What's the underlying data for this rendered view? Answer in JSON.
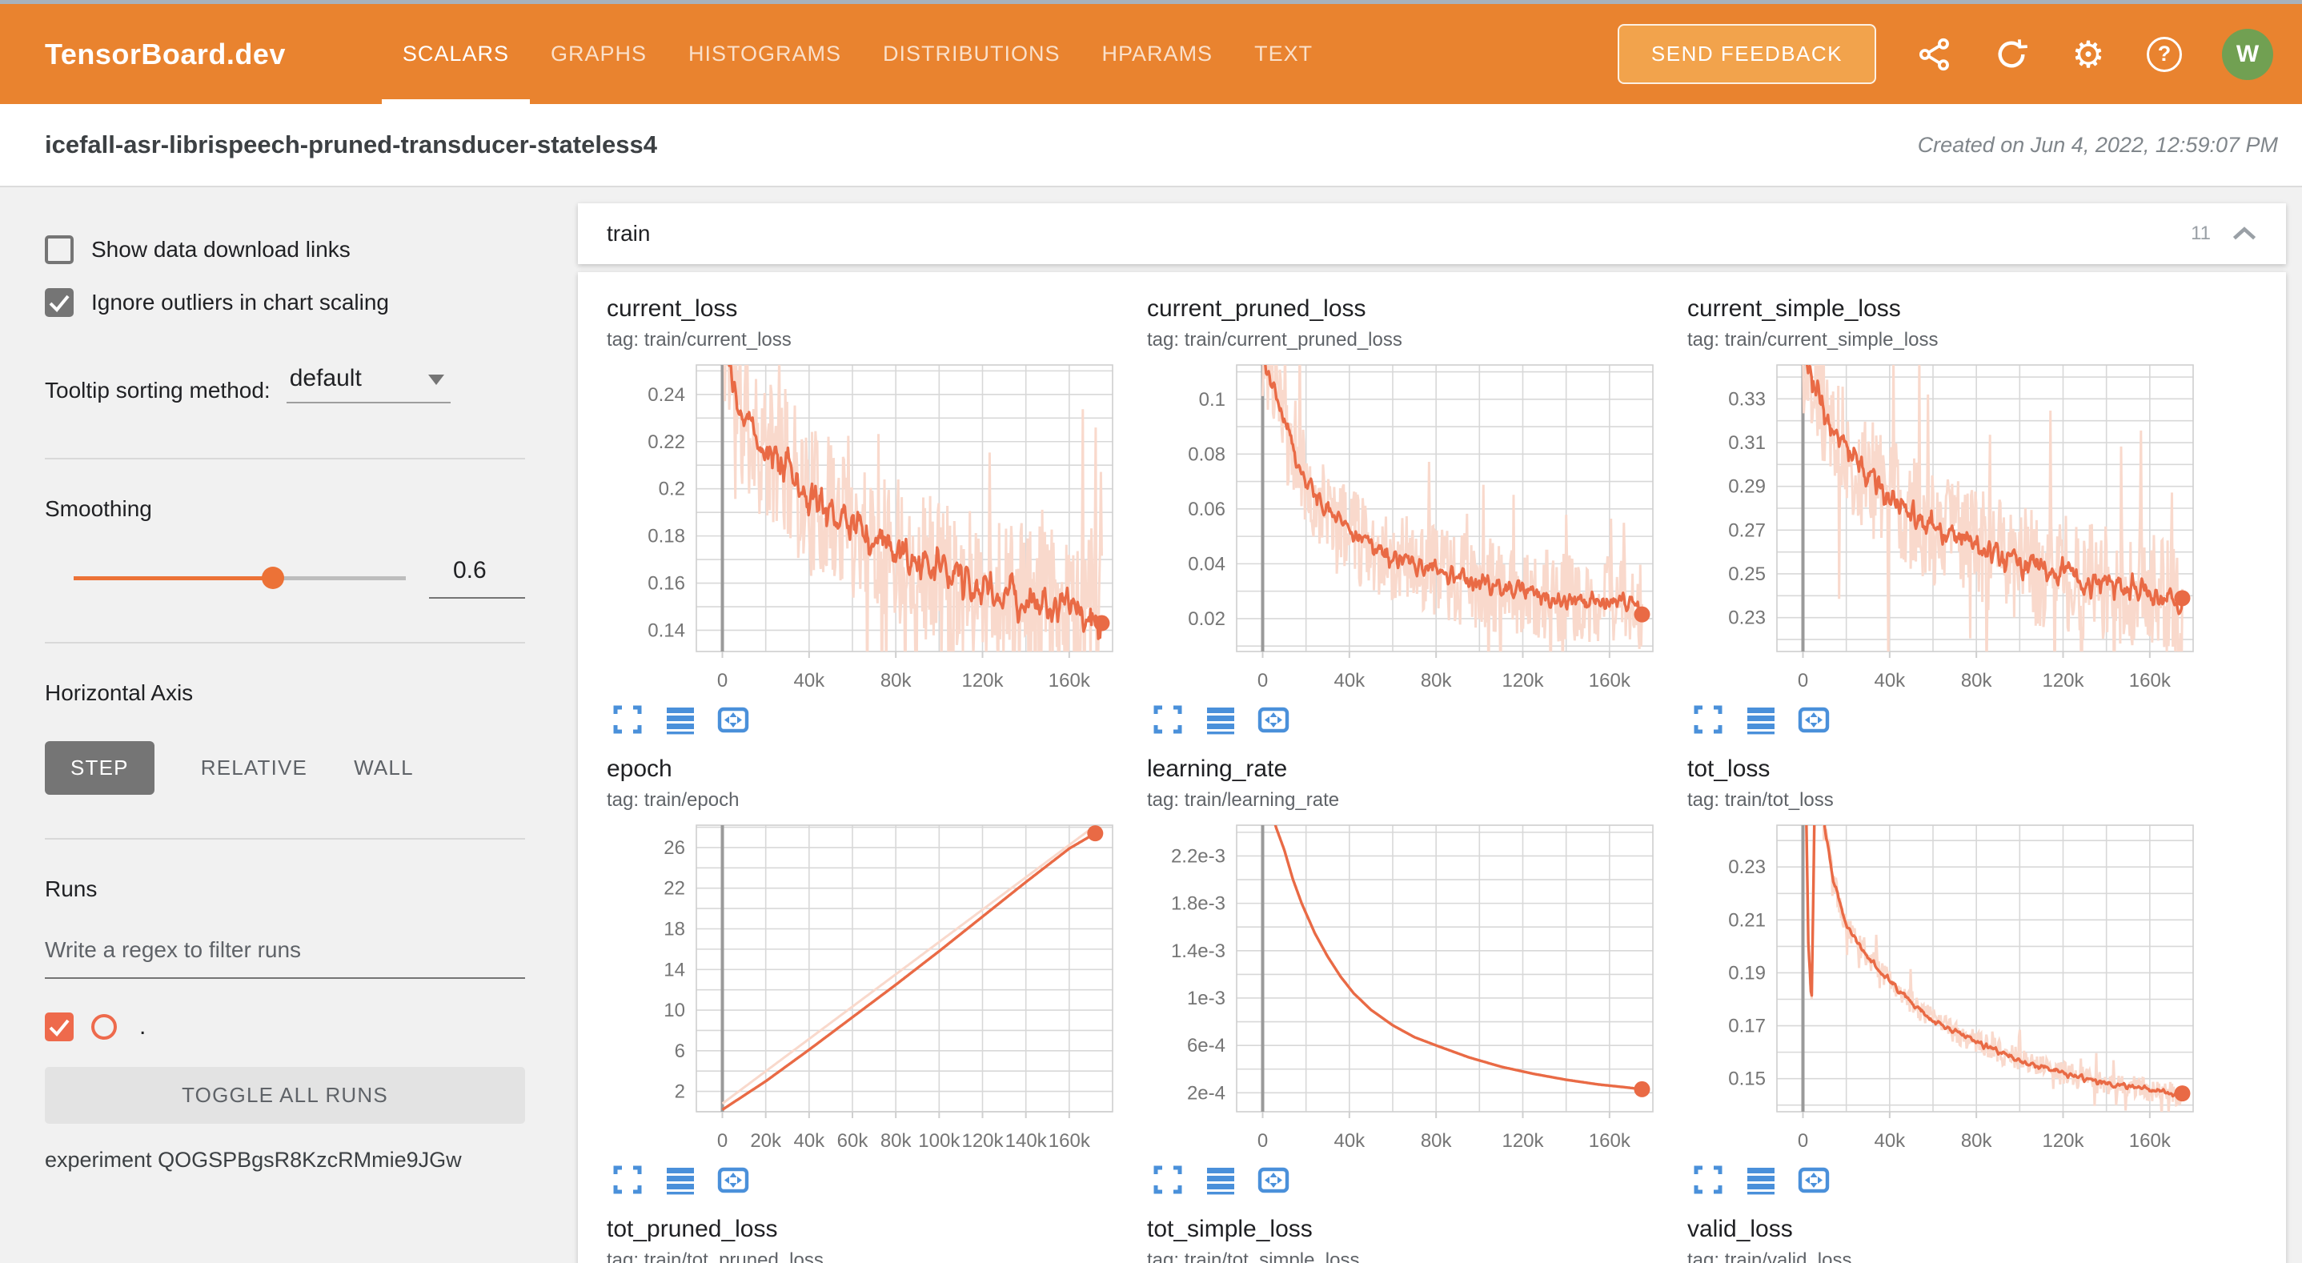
{
  "colors": {
    "header_bg": "#e9832f",
    "feedback_btn_bg": "#f2a34c",
    "accent_orange": "#ec7237",
    "run_color": "#ee6a4c",
    "line_main": "#e96a45",
    "line_light": "#f9d9cc",
    "icon_blue": "#4a90da",
    "avatar_green": "#71a052",
    "tick_gray": "#757575"
  },
  "icons": {
    "share": "share-icon",
    "refresh": "refresh-icon",
    "gear": "⚙",
    "help": "?",
    "collapse": "chevron-up"
  },
  "header": {
    "app_title": "TensorBoard.dev",
    "tabs": [
      "SCALARS",
      "GRAPHS",
      "HISTOGRAMS",
      "DISTRIBUTIONS",
      "HPARAMS",
      "TEXT"
    ],
    "active_tab": "SCALARS",
    "send_feedback_label": "SEND FEEDBACK",
    "avatar_initial": "W"
  },
  "subheader": {
    "experiment_title": "icefall-asr-librispeech-pruned-transducer-stateless4",
    "created_text": "Created on Jun 4, 2022, 12:59:07 PM"
  },
  "sidebar": {
    "show_download_label": "Show data download links",
    "ignore_outliers_label": "Ignore outliers in chart scaling",
    "tooltip_sorting_label": "Tooltip sorting method:",
    "tooltip_sorting_value": "default",
    "smoothing_label": "Smoothing",
    "smoothing_value": "0.6",
    "horizontal_axis_label": "Horizontal Axis",
    "axis_options": [
      "STEP",
      "RELATIVE",
      "WALL"
    ],
    "axis_active": "STEP",
    "runs_label": "Runs",
    "regex_placeholder": "Write a regex to filter runs",
    "run_name": ".",
    "toggle_all_label": "TOGGLE ALL RUNS",
    "experiment_line": "experiment QOGSPBgsR8KzcRMmie9JGw"
  },
  "main_section": {
    "title": "train",
    "count": "11"
  },
  "charts": [
    {
      "title": "current_loss",
      "tag": "tag: train/current_loss",
      "plot": {
        "ylim": [
          0.131,
          0.2525
        ],
        "xlim": [
          -12000,
          180000
        ],
        "y_grid": 0.01,
        "x_grid": 20000,
        "y_ticks": [
          {
            "v": 0.14,
            "label": "0.14"
          },
          {
            "v": 0.16,
            "label": "0.16"
          },
          {
            "v": 0.18,
            "label": "0.18"
          },
          {
            "v": 0.2,
            "label": "0.2"
          },
          {
            "v": 0.22,
            "label": "0.22"
          },
          {
            "v": 0.24,
            "label": "0.24"
          }
        ],
        "x_ticks": [
          {
            "v": 0,
            "label": "0"
          },
          {
            "v": 40000,
            "label": "40k"
          },
          {
            "v": 80000,
            "label": "80k"
          },
          {
            "v": 120000,
            "label": "120k"
          },
          {
            "v": 160000,
            "label": "160k"
          }
        ],
        "anchors": [
          [
            0,
            0.27
          ],
          [
            8000,
            0.23
          ],
          [
            15000,
            0.225
          ],
          [
            20000,
            0.215
          ],
          [
            30000,
            0.21
          ],
          [
            40000,
            0.195
          ],
          [
            50000,
            0.19
          ],
          [
            60000,
            0.185
          ],
          [
            70000,
            0.18
          ],
          [
            80000,
            0.175
          ],
          [
            90000,
            0.17
          ],
          [
            100000,
            0.165
          ],
          [
            110000,
            0.162
          ],
          [
            120000,
            0.158
          ],
          [
            130000,
            0.156
          ],
          [
            140000,
            0.153
          ],
          [
            150000,
            0.152
          ],
          [
            160000,
            0.15
          ],
          [
            175000,
            0.145
          ]
        ],
        "noise": 0.011,
        "raw_noise": 0.032,
        "end_dot": true,
        "seed": 11
      }
    },
    {
      "title": "current_pruned_loss",
      "tag": "tag: train/current_pruned_loss",
      "plot": {
        "ylim": [
          0.008,
          0.1125
        ],
        "xlim": [
          -12000,
          180000
        ],
        "y_grid": 0.01,
        "x_grid": 20000,
        "y_ticks": [
          {
            "v": 0.02,
            "label": "0.02"
          },
          {
            "v": 0.04,
            "label": "0.04"
          },
          {
            "v": 0.06,
            "label": "0.06"
          },
          {
            "v": 0.08,
            "label": "0.08"
          },
          {
            "v": 0.1,
            "label": "0.1"
          }
        ],
        "x_ticks": [
          {
            "v": 0,
            "label": "0"
          },
          {
            "v": 40000,
            "label": "40k"
          },
          {
            "v": 80000,
            "label": "80k"
          },
          {
            "v": 120000,
            "label": "120k"
          },
          {
            "v": 160000,
            "label": "160k"
          }
        ],
        "anchors": [
          [
            0,
            0.115
          ],
          [
            5000,
            0.105
          ],
          [
            10000,
            0.092
          ],
          [
            15000,
            0.08
          ],
          [
            20000,
            0.07
          ],
          [
            30000,
            0.06
          ],
          [
            40000,
            0.052
          ],
          [
            50000,
            0.047
          ],
          [
            60000,
            0.043
          ],
          [
            80000,
            0.037
          ],
          [
            100000,
            0.033
          ],
          [
            120000,
            0.03
          ],
          [
            140000,
            0.027
          ],
          [
            160000,
            0.026
          ],
          [
            175000,
            0.024
          ]
        ],
        "noise": 0.0052,
        "raw_noise": 0.017,
        "end_dot": true,
        "seed": 23
      }
    },
    {
      "title": "current_simple_loss",
      "tag": "tag: train/current_simple_loss",
      "plot": {
        "ylim": [
          0.2145,
          0.3455
        ],
        "xlim": [
          -12000,
          180000
        ],
        "y_grid": 0.01,
        "x_grid": 20000,
        "y_ticks": [
          {
            "v": 0.23,
            "label": "0.23"
          },
          {
            "v": 0.25,
            "label": "0.25"
          },
          {
            "v": 0.27,
            "label": "0.27"
          },
          {
            "v": 0.29,
            "label": "0.29"
          },
          {
            "v": 0.31,
            "label": "0.31"
          },
          {
            "v": 0.33,
            "label": "0.33"
          }
        ],
        "x_ticks": [
          {
            "v": 0,
            "label": "0"
          },
          {
            "v": 40000,
            "label": "40k"
          },
          {
            "v": 80000,
            "label": "80k"
          },
          {
            "v": 120000,
            "label": "120k"
          },
          {
            "v": 160000,
            "label": "160k"
          }
        ],
        "anchors": [
          [
            0,
            0.35
          ],
          [
            8000,
            0.33
          ],
          [
            15000,
            0.315
          ],
          [
            25000,
            0.3
          ],
          [
            40000,
            0.285
          ],
          [
            60000,
            0.272
          ],
          [
            80000,
            0.262
          ],
          [
            100000,
            0.255
          ],
          [
            120000,
            0.25
          ],
          [
            140000,
            0.245
          ],
          [
            160000,
            0.242
          ],
          [
            175000,
            0.235
          ]
        ],
        "noise": 0.0095,
        "raw_noise": 0.027,
        "end_dot": true,
        "seed": 37
      }
    },
    {
      "title": "epoch",
      "tag": "tag: train/epoch",
      "plot": {
        "ylim": [
          0,
          28.2
        ],
        "xlim": [
          -12000,
          180000
        ],
        "y_grid": 2,
        "x_grid": 20000,
        "y_ticks": [
          {
            "v": 2,
            "label": "2"
          },
          {
            "v": 6,
            "label": "6"
          },
          {
            "v": 10,
            "label": "10"
          },
          {
            "v": 14,
            "label": "14"
          },
          {
            "v": 18,
            "label": "18"
          },
          {
            "v": 22,
            "label": "22"
          },
          {
            "v": 26,
            "label": "26"
          }
        ],
        "x_ticks": [
          {
            "v": 0,
            "label": "0"
          },
          {
            "v": 20000,
            "label": "20k"
          },
          {
            "v": 40000,
            "label": "40k"
          },
          {
            "v": 60000,
            "label": "60k"
          },
          {
            "v": 80000,
            "label": "80k"
          },
          {
            "v": 100000,
            "label": "100k"
          },
          {
            "v": 120000,
            "label": "120k"
          },
          {
            "v": 140000,
            "label": "140k"
          },
          {
            "v": 160000,
            "label": "160k"
          }
        ],
        "anchors": [
          [
            0,
            0.2
          ],
          [
            20000,
            3.0
          ],
          [
            40000,
            6.1
          ],
          [
            60000,
            9.3
          ],
          [
            80000,
            12.5
          ],
          [
            100000,
            15.8
          ],
          [
            120000,
            19.2
          ],
          [
            140000,
            22.6
          ],
          [
            160000,
            25.9
          ],
          [
            172000,
            27.4
          ]
        ],
        "raw_anchors": [
          [
            0,
            0.8
          ],
          [
            171000,
            28.0
          ]
        ],
        "noise": 0,
        "raw_noise": 0,
        "end_dot": true,
        "seed": 41
      }
    },
    {
      "title": "learning_rate",
      "tag": "tag: train/learning_rate",
      "plot": {
        "ylim": [
          4e-05,
          0.00246
        ],
        "xlim": [
          -12000,
          180000
        ],
        "y_grid": 0.0002,
        "x_grid": 20000,
        "y_ticks": [
          {
            "v": 0.0002,
            "label": "2e-4"
          },
          {
            "v": 0.0006,
            "label": "6e-4"
          },
          {
            "v": 0.001,
            "label": "1e-3"
          },
          {
            "v": 0.0014,
            "label": "1.4e-3"
          },
          {
            "v": 0.0018,
            "label": "1.8e-3"
          },
          {
            "v": 0.0022,
            "label": "2.2e-3"
          }
        ],
        "x_ticks": [
          {
            "v": 0,
            "label": "0"
          },
          {
            "v": 40000,
            "label": "40k"
          },
          {
            "v": 80000,
            "label": "80k"
          },
          {
            "v": 120000,
            "label": "120k"
          },
          {
            "v": 160000,
            "label": "160k"
          }
        ],
        "anchors": [
          [
            4000,
            0.00265
          ],
          [
            6000,
            0.00245
          ],
          [
            10000,
            0.00225
          ],
          [
            14000,
            0.002
          ],
          [
            18000,
            0.0018
          ],
          [
            24000,
            0.00155
          ],
          [
            30000,
            0.00135
          ],
          [
            36000,
            0.00118
          ],
          [
            42000,
            0.00104
          ],
          [
            50000,
            0.0009
          ],
          [
            60000,
            0.00077
          ],
          [
            70000,
            0.00067
          ],
          [
            80000,
            0.0006
          ],
          [
            95000,
            0.0005
          ],
          [
            110000,
            0.00042
          ],
          [
            125000,
            0.00036
          ],
          [
            140000,
            0.00031
          ],
          [
            155000,
            0.00027
          ],
          [
            168000,
            0.000245
          ],
          [
            175000,
            0.00023
          ]
        ],
        "noise": 0,
        "raw_noise": 0,
        "end_dot": true,
        "seed": 53
      }
    },
    {
      "title": "tot_loss",
      "tag": "tag: train/tot_loss",
      "plot": {
        "ylim": [
          0.1375,
          0.2458
        ],
        "xlim": [
          -12000,
          180000
        ],
        "y_grid": 0.01,
        "x_grid": 20000,
        "y_ticks": [
          {
            "v": 0.15,
            "label": "0.15"
          },
          {
            "v": 0.17,
            "label": "0.17"
          },
          {
            "v": 0.19,
            "label": "0.19"
          },
          {
            "v": 0.21,
            "label": "0.21"
          },
          {
            "v": 0.23,
            "label": "0.23"
          }
        ],
        "x_ticks": [
          {
            "v": 0,
            "label": "0"
          },
          {
            "v": 40000,
            "label": "40k"
          },
          {
            "v": 80000,
            "label": "80k"
          },
          {
            "v": 120000,
            "label": "120k"
          },
          {
            "v": 160000,
            "label": "160k"
          }
        ],
        "anchors": [
          [
            500,
            0.3
          ],
          [
            2500,
            0.2
          ],
          [
            4000,
            0.178
          ],
          [
            5500,
            0.26
          ],
          [
            8000,
            0.27
          ],
          [
            10000,
            0.245
          ],
          [
            14000,
            0.225
          ],
          [
            20000,
            0.208
          ],
          [
            30000,
            0.196
          ],
          [
            40000,
            0.187
          ],
          [
            50000,
            0.179
          ],
          [
            60000,
            0.172
          ],
          [
            80000,
            0.164
          ],
          [
            100000,
            0.157
          ],
          [
            120000,
            0.152
          ],
          [
            140000,
            0.148
          ],
          [
            160000,
            0.146
          ],
          [
            175000,
            0.1435
          ]
        ],
        "noise": 0.0016,
        "raw_noise": 0.0045,
        "end_dot": true,
        "seed": 67
      }
    },
    {
      "title": "tot_pruned_loss",
      "tag": "tag: train/tot_pruned_loss"
    },
    {
      "title": "tot_simple_loss",
      "tag": "tag: train/tot_simple_loss"
    },
    {
      "title": "valid_loss",
      "tag": "tag: train/valid_loss"
    }
  ]
}
